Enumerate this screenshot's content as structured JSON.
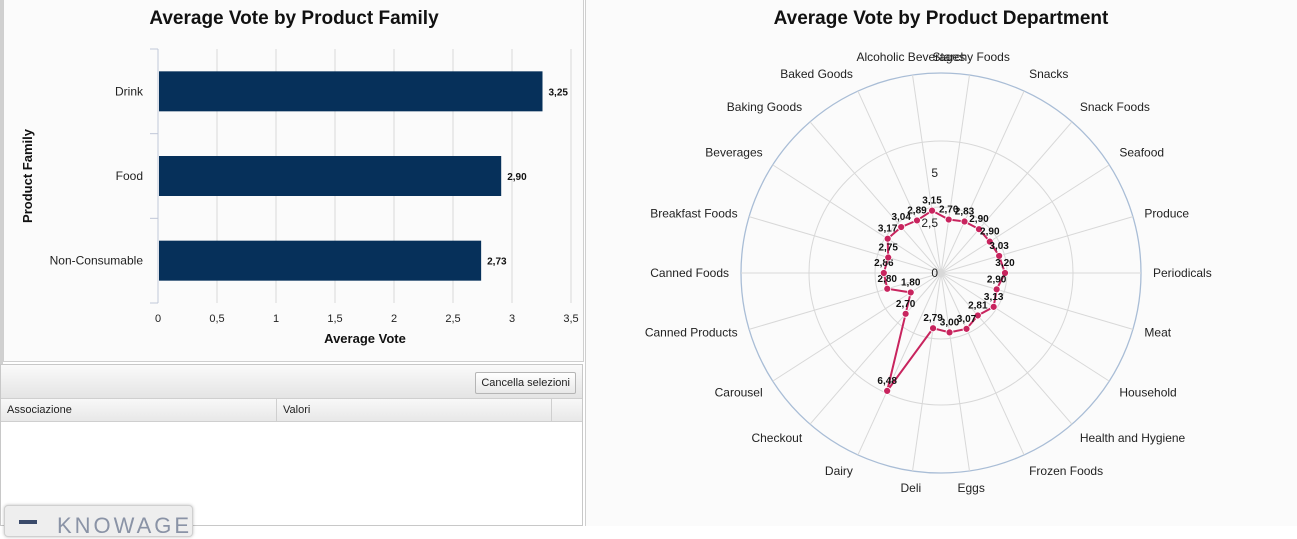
{
  "colors": {
    "bar": "#06305a",
    "radar_line": "#c8245e",
    "grid": "#d8d8d8",
    "outer_ring": "#a9bdd6"
  },
  "selection_panel": {
    "clear_button": "Cancella selezioni",
    "columns": [
      "Associazione",
      "Valori"
    ]
  },
  "logo": {
    "text": "KNOWAGE",
    "icon": "menu-icon"
  },
  "chart_data": [
    {
      "type": "bar",
      "orientation": "horizontal",
      "title": "Average Vote by Product Family",
      "xlabel": "Average Vote",
      "ylabel": "Product Family",
      "categories": [
        "Drink",
        "Food",
        "Non-Consumable"
      ],
      "values": [
        3.25,
        2.9,
        2.73
      ],
      "data_labels": [
        "3,25",
        "2,90",
        "2,73"
      ],
      "xlim": [
        0,
        3.5
      ],
      "x_ticks": [
        "0",
        "0,5",
        "1",
        "1,5",
        "2",
        "2,5",
        "3",
        "3,5"
      ],
      "grid": true
    },
    {
      "type": "radar",
      "title": "Average Vote by Product Department",
      "radial_ticks": [
        "0",
        "2,5",
        "5"
      ],
      "categories": [
        "Starchy Foods",
        "Snacks",
        "Snack Foods",
        "Seafood",
        "Produce",
        "Periodicals",
        "Meat",
        "Household",
        "Health and Hygiene",
        "Frozen Foods",
        "Eggs",
        "Deli",
        "Dairy",
        "Checkout",
        "Carousel",
        "Canned Products",
        "Canned Foods",
        "Breakfast Foods",
        "Beverages",
        "Baking Goods",
        "Baked Goods",
        "Alcoholic Beverages"
      ],
      "values": [
        2.7,
        2.83,
        2.9,
        2.9,
        3.03,
        3.2,
        2.9,
        3.13,
        2.81,
        3.07,
        3.0,
        2.79,
        6.48,
        2.7,
        1.8,
        2.8,
        2.86,
        2.75,
        3.17,
        3.04,
        2.89,
        3.15
      ],
      "data_labels": [
        "2,70",
        "2,83",
        "2,90",
        "2,90",
        "3,03",
        "3,20",
        "2,90",
        "3,13",
        "2,81",
        "3,07",
        "3,00",
        "2,79",
        "6,48",
        "2,70",
        "1,80",
        "2,80",
        "2,86",
        "2,75",
        "3,17",
        "3,04",
        "2,89",
        "3,15"
      ],
      "rlim": [
        0,
        10
      ],
      "grid": true
    }
  ]
}
